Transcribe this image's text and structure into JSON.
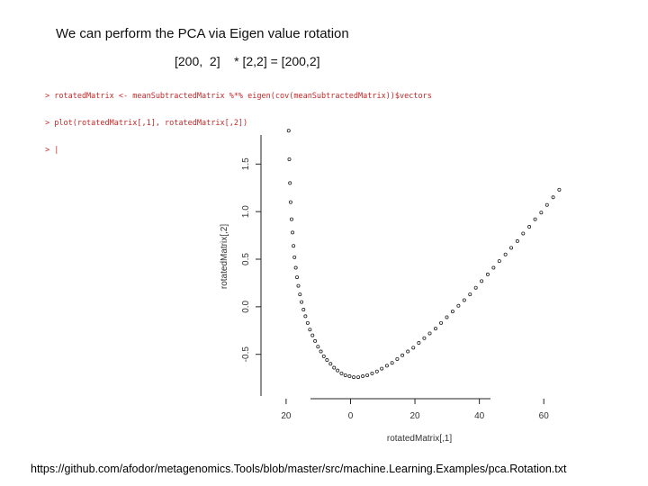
{
  "slide": {
    "title": "We can perform the PCA via Eigen value rotation",
    "dimensions": "[200,  2]    * [2,2] = [200,2]",
    "footer_url": "https://github.com/afodor/metagenomics.Tools/blob/master/src/machine.Learning.Examples/pca.Rotation.txt"
  },
  "console": {
    "lines": [
      "> rotatedMatrix <- meanSubtractedMatrix %*% eigen(cov(meanSubtractedMatrix))$vectors",
      "> plot(rotatedMatrix[,1], rotatedMatrix[,2])",
      "> |"
    ]
  },
  "chart_data": {
    "type": "scatter",
    "xlabel": "rotatedMatrix[,1]",
    "ylabel": "rotatedMatrix[,2]",
    "x_ticks": [
      "20",
      "0",
      "20",
      "40",
      "60"
    ],
    "y_ticks": [
      "-0.5",
      "0.0",
      "0.5",
      "1.0",
      "1.5"
    ],
    "xlim": [
      -25,
      70
    ],
    "ylim": [
      -0.9,
      1.9
    ],
    "point_color": "#222222",
    "series": [
      {
        "x": [
          -19.2,
          -19.0,
          -18.8,
          -18.6,
          -18.3,
          -18.0,
          -17.7,
          -17.4,
          -17.0,
          -16.6,
          -16.2,
          -15.7,
          -15.2,
          -14.6,
          -14.0,
          -13.3,
          -12.6,
          -11.8,
          -11.0,
          -10.1,
          -9.2,
          -8.3,
          -7.3,
          -6.2,
          -5.1,
          -4.0,
          -2.8,
          -1.6,
          -0.3,
          1.0,
          2.4,
          3.8,
          5.2,
          6.7,
          8.2,
          9.7,
          11.3,
          12.9,
          14.5,
          16.1,
          17.8,
          19.5,
          21.2,
          22.9,
          24.6,
          26.4,
          28.1,
          29.9,
          31.7,
          33.5,
          35.3,
          37.1,
          38.9,
          40.7,
          42.6,
          44.4,
          46.2,
          48.1,
          49.9,
          51.8,
          53.6,
          55.5,
          57.3,
          59.2,
          61.0,
          62.9,
          64.8
        ],
        "y": [
          1.85,
          1.55,
          1.3,
          1.1,
          0.92,
          0.78,
          0.64,
          0.52,
          0.41,
          0.31,
          0.22,
          0.13,
          0.05,
          -0.03,
          -0.1,
          -0.17,
          -0.24,
          -0.3,
          -0.36,
          -0.42,
          -0.47,
          -0.52,
          -0.56,
          -0.6,
          -0.64,
          -0.67,
          -0.7,
          -0.72,
          -0.73,
          -0.74,
          -0.74,
          -0.73,
          -0.72,
          -0.7,
          -0.68,
          -0.65,
          -0.62,
          -0.59,
          -0.55,
          -0.51,
          -0.47,
          -0.43,
          -0.38,
          -0.33,
          -0.28,
          -0.23,
          -0.17,
          -0.11,
          -0.05,
          0.01,
          0.07,
          0.13,
          0.2,
          0.27,
          0.34,
          0.41,
          0.48,
          0.55,
          0.62,
          0.69,
          0.77,
          0.84,
          0.92,
          0.99,
          1.07,
          1.15,
          1.23
        ]
      }
    ]
  }
}
